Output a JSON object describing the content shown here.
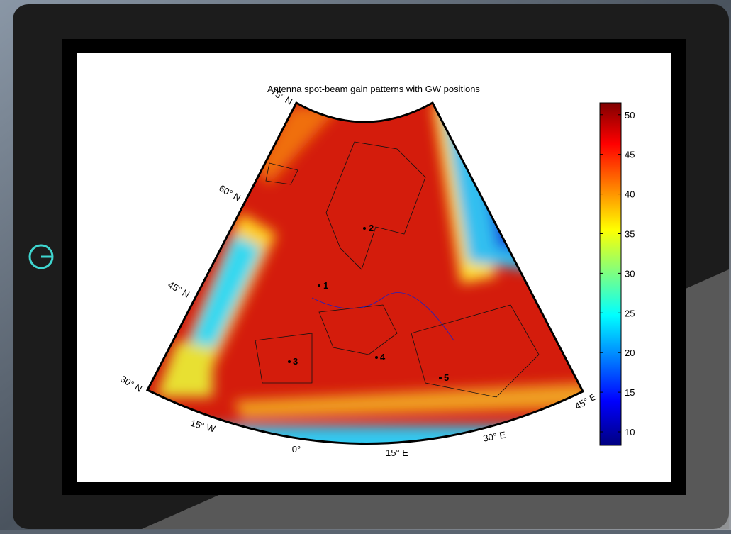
{
  "title": "Antenna spot-beam gain patterns with GW positions",
  "colorbar": {
    "lim": [
      8.3,
      51.5
    ],
    "ticks": [
      10,
      15,
      20,
      25,
      30,
      35,
      40,
      45,
      50
    ]
  },
  "latitude_labels": [
    "30° N",
    "45° N",
    "60° N",
    "75° N"
  ],
  "longitude_labels": [
    "15° W",
    "0°",
    "15° E",
    "30° E",
    "45° E"
  ],
  "gateways": [
    "1",
    "2",
    "3",
    "4",
    "5"
  ]
}
